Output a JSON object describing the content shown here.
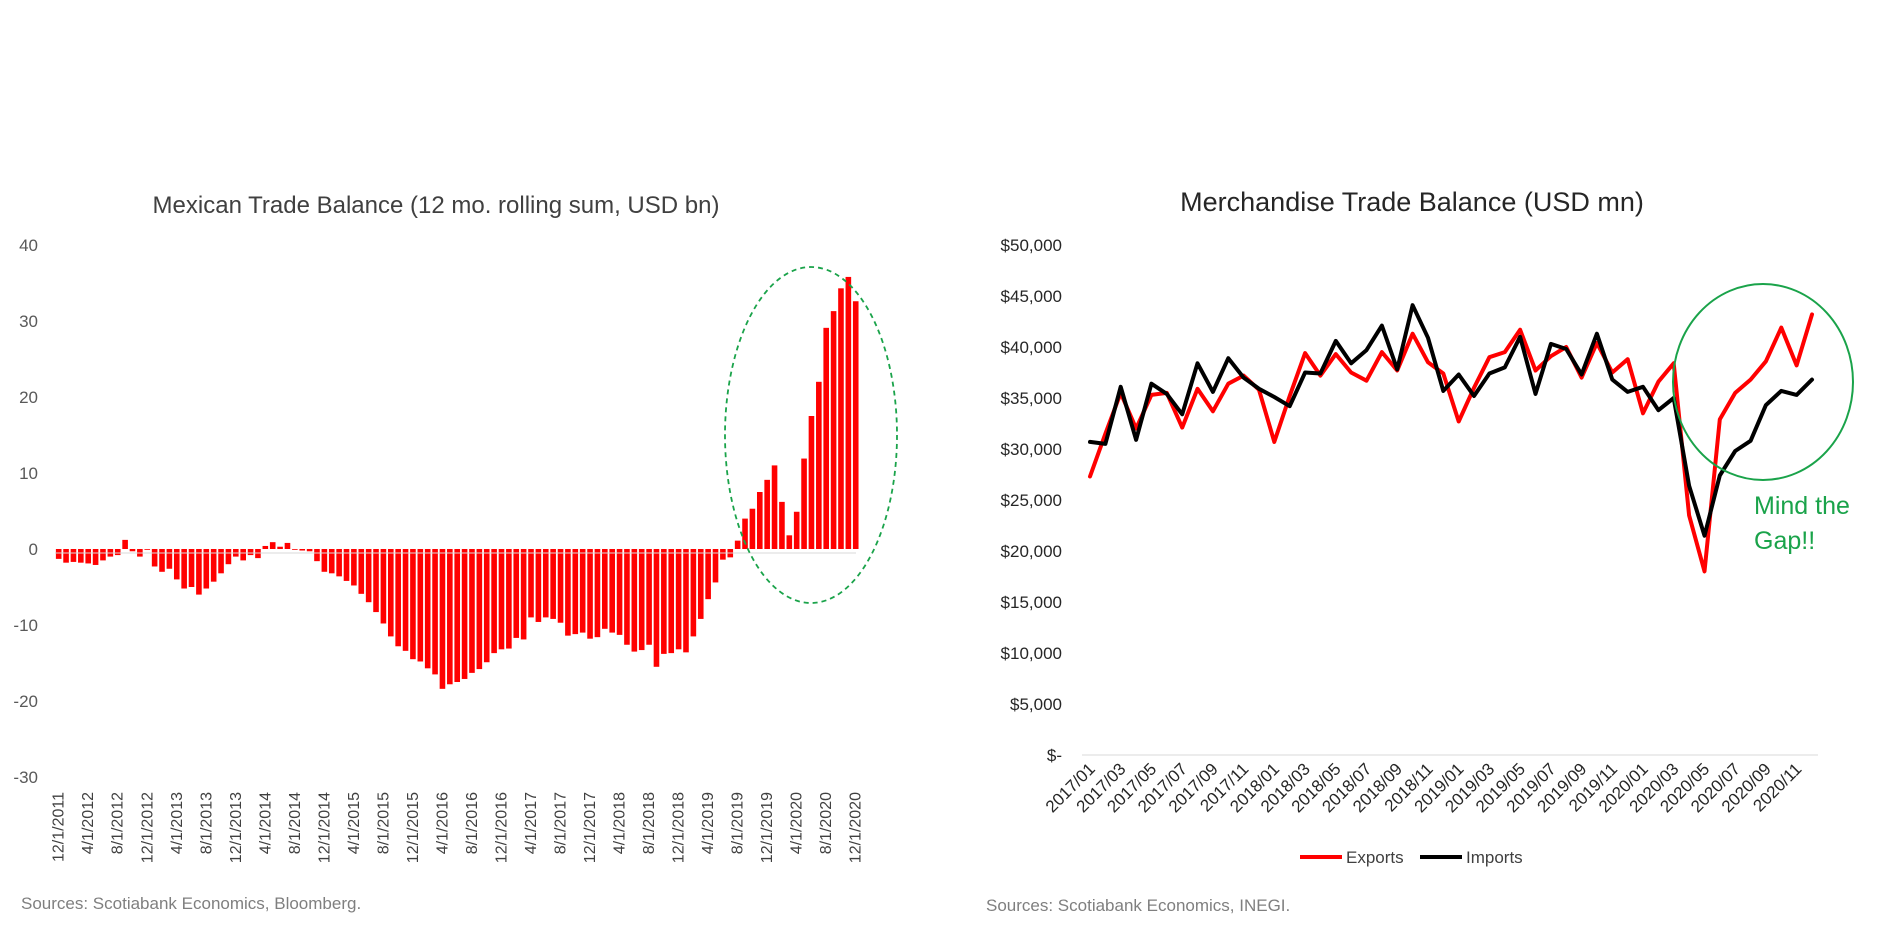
{
  "colors": {
    "bar": "#ff0000",
    "exports": "#ff0000",
    "imports": "#000000",
    "ellipse": "#1aa34a",
    "annotation": "#1aa34a",
    "axis_text": "#595959",
    "title": "#404040"
  },
  "left_chart": {
    "title": "Mexican Trade Balance (12 mo. rolling sum, USD bn)",
    "source": "Sources: Scotiabank Economics, Bloomberg."
  },
  "right_chart": {
    "title": "Merchandise Trade Balance (USD mn)",
    "source": "Sources: Scotiabank Economics, INEGI.",
    "annotation_line1": "Mind the",
    "annotation_line2": "Gap!!",
    "legend_exports": "Exports",
    "legend_imports": "Imports"
  },
  "chart_data": [
    {
      "type": "bar",
      "title": "Mexican Trade Balance (12 mo. rolling sum, USD bn)",
      "ylim": [
        -30,
        40
      ],
      "yticks": [
        40,
        30,
        20,
        10,
        0,
        -10,
        -20,
        -30
      ],
      "xtick_labels": [
        "12/1/2011",
        "4/1/2012",
        "8/1/2012",
        "12/1/2012",
        "4/1/2013",
        "8/1/2013",
        "12/1/2013",
        "4/1/2014",
        "8/1/2014",
        "12/1/2014",
        "4/1/2015",
        "8/1/2015",
        "12/1/2015",
        "4/1/2016",
        "8/1/2016",
        "12/1/2016",
        "4/1/2017",
        "8/1/2017",
        "12/1/2017",
        "4/1/2018",
        "8/1/2018",
        "12/1/2018",
        "4/1/2019",
        "8/1/2019",
        "12/1/2019",
        "4/1/2020",
        "8/1/2020",
        "12/1/2020"
      ],
      "categories_start": "12/1/2011",
      "frequency": "monthly",
      "values": [
        -1.3,
        -1.8,
        -1.7,
        -1.8,
        -1.9,
        -2.1,
        -1.5,
        -1,
        -0.8,
        1.2,
        -0.3,
        -1,
        0,
        -2.3,
        -3,
        -2.6,
        -4,
        -5.2,
        -5,
        -6,
        -5.2,
        -4.3,
        -3.2,
        -2,
        -1,
        -1.5,
        -0.8,
        -1.2,
        0.4,
        0.9,
        0.3,
        0.8,
        -0.1,
        -0.2,
        -0.3,
        -1.6,
        -3,
        -3.2,
        -3.6,
        -4.2,
        -4.8,
        -5.9,
        -7,
        -8.3,
        -9.8,
        -11.5,
        -12.8,
        -13.4,
        -14.5,
        -14.8,
        -15.7,
        -16.5,
        -18.4,
        -17.8,
        -17.5,
        -17.1,
        -16.3,
        -15.8,
        -14.9,
        -13.7,
        -13.2,
        -13.1,
        -11.7,
        -11.9,
        -9,
        -9.6,
        -9,
        -9.2,
        -9.7,
        -11.4,
        -11.2,
        -11,
        -11.8,
        -11.6,
        -10.5,
        -11,
        -11.3,
        -12.6,
        -13.5,
        -13.3,
        -12.6,
        -15.5,
        -13.8,
        -13.7,
        -13.2,
        -13.6,
        -11.5,
        -9.2,
        -6.6,
        -4.4,
        -1.4,
        -1.1,
        1.1,
        4,
        5.3,
        7.5,
        9.1,
        11,
        6.2,
        1.8,
        4.9,
        11.9,
        17.5,
        22,
        29.1,
        31.3,
        34.3,
        35.8,
        32.6
      ],
      "annotation": "green-dashed-ellipse"
    },
    {
      "type": "line",
      "title": "Merchandise Trade Balance (USD mn)",
      "ylim": [
        0,
        50000
      ],
      "yticks": [
        "$50,000",
        "$45,000",
        "$40,000",
        "$35,000",
        "$30,000",
        "$25,000",
        "$20,000",
        "$15,000",
        "$10,000",
        "$5,000",
        "$-"
      ],
      "x": [
        "2017/01",
        "2017/02",
        "2017/03",
        "2017/04",
        "2017/05",
        "2017/06",
        "2017/07",
        "2017/08",
        "2017/09",
        "2017/10",
        "2017/11",
        "2017/12",
        "2018/01",
        "2018/02",
        "2018/03",
        "2018/04",
        "2018/05",
        "2018/06",
        "2018/07",
        "2018/08",
        "2018/09",
        "2018/10",
        "2018/11",
        "2018/12",
        "2019/01",
        "2019/02",
        "2019/03",
        "2019/04",
        "2019/05",
        "2019/06",
        "2019/07",
        "2019/08",
        "2019/09",
        "2019/10",
        "2019/11",
        "2019/12",
        "2020/01",
        "2020/02",
        "2020/03",
        "2020/04",
        "2020/05",
        "2020/06",
        "2020/07",
        "2020/08",
        "2020/09",
        "2020/10",
        "2020/11",
        "2020/12"
      ],
      "xtick_labels": [
        "2017/01",
        "2017/03",
        "2017/05",
        "2017/07",
        "2017/09",
        "2017/11",
        "2018/01",
        "2018/03",
        "2018/05",
        "2018/07",
        "2018/09",
        "2018/11",
        "2019/01",
        "2019/03",
        "2019/05",
        "2019/07",
        "2019/09",
        "2019/11",
        "2020/01",
        "2020/03",
        "2020/05",
        "2020/07",
        "2020/09",
        "2020/11"
      ],
      "series": [
        {
          "name": "Exports",
          "values": [
            27300,
            31500,
            35500,
            32000,
            35300,
            35500,
            32100,
            35900,
            33700,
            36400,
            37200,
            35800,
            30700,
            35200,
            39400,
            37200,
            39300,
            37500,
            36700,
            39500,
            37700,
            41300,
            38500,
            37400,
            32700,
            36000,
            39000,
            39500,
            41700,
            37700,
            39100,
            40000,
            37000,
            40400,
            37500,
            38800,
            33500,
            36600,
            38400,
            23500,
            18000,
            32900,
            35500,
            36800,
            38600,
            41900,
            38200,
            43200
          ]
        },
        {
          "name": "Imports",
          "values": [
            30700,
            30500,
            36100,
            30900,
            36400,
            35400,
            33400,
            38400,
            35600,
            38900,
            37000,
            35900,
            35100,
            34200,
            37500,
            37400,
            40600,
            38400,
            39700,
            42100,
            37800,
            44100,
            40900,
            35700,
            37300,
            35200,
            37400,
            38000,
            41000,
            35400,
            40300,
            39800,
            37300,
            41300,
            36800,
            35600,
            36100,
            33800,
            35000,
            26400,
            21500,
            27400,
            29800,
            30800,
            34300,
            35700,
            35300,
            36800
          ]
        }
      ],
      "legend_position": "bottom-center",
      "annotation": "Mind the Gap!!"
    }
  ]
}
